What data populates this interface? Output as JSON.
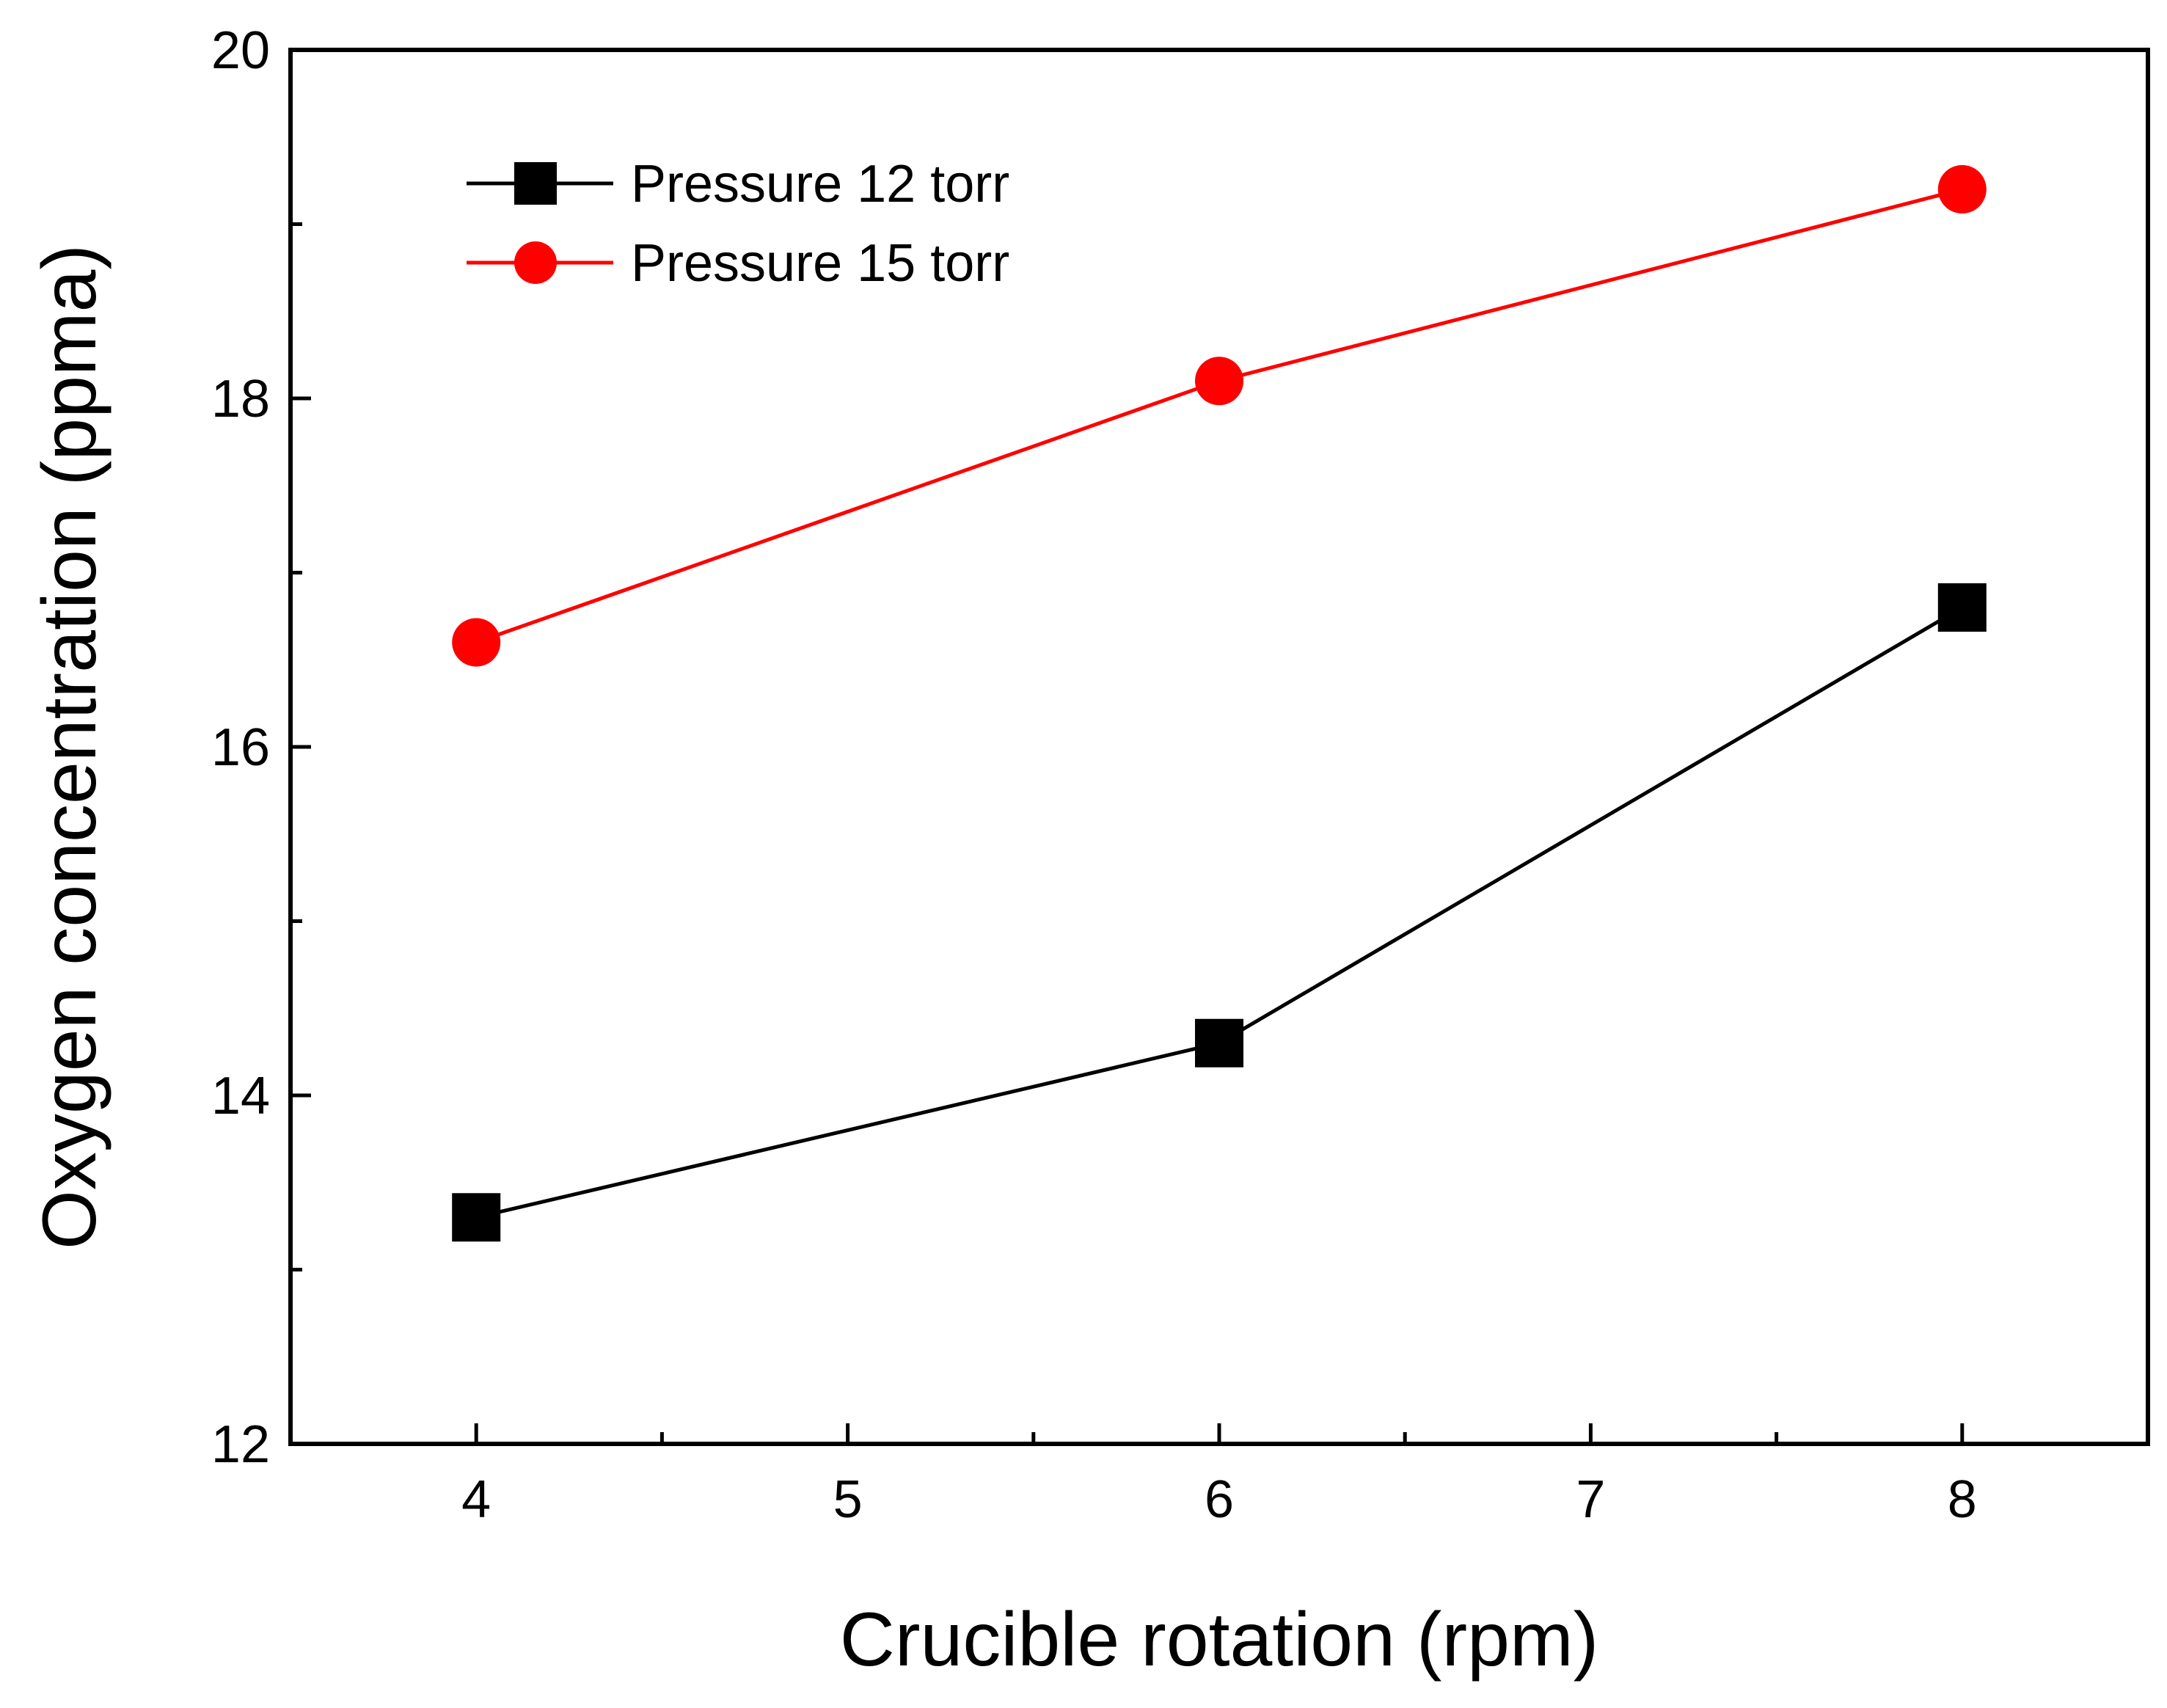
{
  "chart_data": {
    "type": "line",
    "title": "",
    "xlabel": "Crucible rotation (rpm)",
    "ylabel": "Oxygen concentration (ppma)",
    "xlim": [
      3.5,
      8.5
    ],
    "ylim": [
      12,
      20
    ],
    "x_major_ticks": [
      4,
      5,
      6,
      7,
      8
    ],
    "x_minor_ticks": [
      4.5,
      5.5,
      6.5,
      7.5
    ],
    "y_major_ticks": [
      12,
      14,
      16,
      18,
      20
    ],
    "y_minor_ticks": [
      13,
      15,
      17,
      19
    ],
    "tick_labels": {
      "x": [
        "4",
        "5",
        "6",
        "7",
        "8"
      ],
      "y": [
        "12",
        "14",
        "16",
        "18",
        "20"
      ]
    },
    "grid": false,
    "legend_position": "top-left",
    "series": [
      {
        "name": "Pressure 12 torr",
        "x": [
          4,
          6,
          8
        ],
        "values": [
          13.3,
          14.3,
          16.8
        ],
        "color": "#000000",
        "marker": "square"
      },
      {
        "name": "Pressure 15 torr",
        "x": [
          4,
          6,
          8
        ],
        "values": [
          16.6,
          18.1,
          19.2
        ],
        "color": "#ff0000",
        "marker": "circle"
      }
    ]
  }
}
